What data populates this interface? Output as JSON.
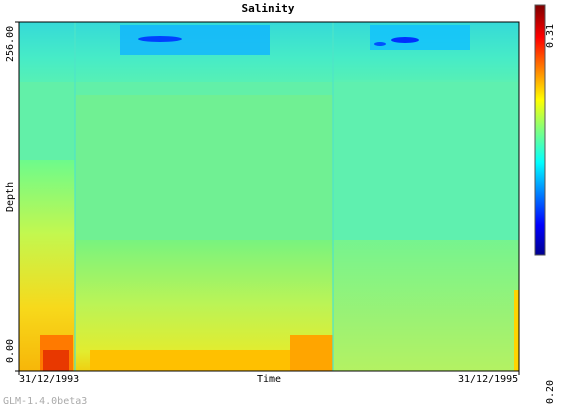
{
  "chart_data": {
    "type": "heatmap",
    "title": "Salinity",
    "xlabel": "Time",
    "ylabel": "Depth",
    "x_ticks": [
      "31/12/1993",
      "31/12/1995"
    ],
    "y_ticks": [
      "0.00",
      "256.00"
    ],
    "colorbar": {
      "min": 0.2,
      "max": 0.31,
      "min_label": "0.20",
      "max_label": "0.31"
    },
    "colormap": [
      "#00008f",
      "#0000ff",
      "#007fff",
      "#00ffff",
      "#7fff7f",
      "#ffff00",
      "#ff7f00",
      "#ff0000",
      "#7f0000"
    ]
  },
  "footer": {
    "credit": "GLM-1.4.0beta3"
  }
}
